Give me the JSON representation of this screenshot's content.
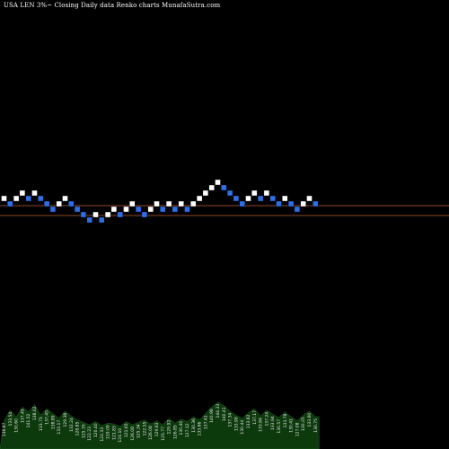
{
  "header": {
    "title": "USA LEN  3%~   Closing  Daily data  Renko  charts MunafaSutra.com"
  },
  "colors": {
    "background": "#000000",
    "up_brick": "#ffffff",
    "down_brick": "#2f6fe6",
    "ref_line": "#c0613a",
    "volume_area": "#0d3a0d"
  },
  "chart_data": {
    "type": "renko",
    "title": "USA LEN  3%~   Closing  Daily data  Renko  charts MunafaSutra.com",
    "xlabel": "",
    "ylabel": "",
    "grid": false,
    "legend": "none",
    "brick_percent": 3,
    "bricks": [
      {
        "dir": "up",
        "level": 0
      },
      {
        "dir": "down",
        "level": -1
      },
      {
        "dir": "up",
        "level": 0
      },
      {
        "dir": "up",
        "level": 1
      },
      {
        "dir": "down",
        "level": 0
      },
      {
        "dir": "up",
        "level": 1
      },
      {
        "dir": "down",
        "level": 0
      },
      {
        "dir": "down",
        "level": -1
      },
      {
        "dir": "down",
        "level": -2
      },
      {
        "dir": "up",
        "level": -1
      },
      {
        "dir": "up",
        "level": 0
      },
      {
        "dir": "down",
        "level": -1
      },
      {
        "dir": "down",
        "level": -2
      },
      {
        "dir": "down",
        "level": -3
      },
      {
        "dir": "down",
        "level": -4
      },
      {
        "dir": "up",
        "level": -3
      },
      {
        "dir": "down",
        "level": -4
      },
      {
        "dir": "up",
        "level": -3
      },
      {
        "dir": "up",
        "level": -2
      },
      {
        "dir": "down",
        "level": -3
      },
      {
        "dir": "up",
        "level": -2
      },
      {
        "dir": "up",
        "level": -1
      },
      {
        "dir": "down",
        "level": -2
      },
      {
        "dir": "down",
        "level": -3
      },
      {
        "dir": "up",
        "level": -2
      },
      {
        "dir": "up",
        "level": -1
      },
      {
        "dir": "down",
        "level": -2
      },
      {
        "dir": "up",
        "level": -1
      },
      {
        "dir": "down",
        "level": -2
      },
      {
        "dir": "up",
        "level": -1
      },
      {
        "dir": "down",
        "level": -2
      },
      {
        "dir": "up",
        "level": -1
      },
      {
        "dir": "up",
        "level": 0
      },
      {
        "dir": "up",
        "level": 1
      },
      {
        "dir": "up",
        "level": 2
      },
      {
        "dir": "up",
        "level": 3
      },
      {
        "dir": "down",
        "level": 2
      },
      {
        "dir": "down",
        "level": 1
      },
      {
        "dir": "down",
        "level": 0
      },
      {
        "dir": "down",
        "level": -1
      },
      {
        "dir": "up",
        "level": 0
      },
      {
        "dir": "up",
        "level": 1
      },
      {
        "dir": "down",
        "level": 0
      },
      {
        "dir": "up",
        "level": 1
      },
      {
        "dir": "down",
        "level": 0
      },
      {
        "dir": "down",
        "level": -1
      },
      {
        "dir": "up",
        "level": 0
      },
      {
        "dir": "down",
        "level": -1
      },
      {
        "dir": "down",
        "level": -2
      },
      {
        "dir": "up",
        "level": -1
      },
      {
        "dir": "up",
        "level": 0
      },
      {
        "dir": "down",
        "level": -1
      }
    ],
    "reference_lines": [
      "resistance",
      "support"
    ],
    "volume": [
      0.35,
      0.48,
      0.4,
      0.52,
      0.46,
      0.55,
      0.42,
      0.5,
      0.44,
      0.38,
      0.47,
      0.41,
      0.36,
      0.33,
      0.3,
      0.34,
      0.29,
      0.32,
      0.31,
      0.28,
      0.34,
      0.3,
      0.33,
      0.36,
      0.31,
      0.35,
      0.3,
      0.38,
      0.32,
      0.37,
      0.34,
      0.4,
      0.36,
      0.44,
      0.52,
      0.58,
      0.54,
      0.47,
      0.42,
      0.38,
      0.45,
      0.5,
      0.41,
      0.48,
      0.43,
      0.39,
      0.46,
      0.4,
      0.35,
      0.42,
      0.47,
      0.4
    ],
    "x_tick_labels": [
      "136.87",
      "133.54",
      "130.60",
      "137.45",
      "141.52",
      "138.02",
      "133.73",
      "137.45",
      "138.89",
      "133.17",
      "129.38",
      "132.24",
      "128.85",
      "125.35",
      "122.23",
      "120.40",
      "122.33",
      "119.09",
      "121.83",
      "124.10",
      "121.65",
      "126.08",
      "125.34",
      "122.55",
      "126.08",
      "129.63",
      "125.77",
      "129.92",
      "126.85",
      "130.40",
      "127.12",
      "130.36",
      "133.66",
      "137.42",
      "140.98",
      "144.33",
      "140.41",
      "137.34",
      "133.99",
      "130.44",
      "133.82",
      "137.17",
      "133.84",
      "137.24",
      "133.94",
      "130.57",
      "133.78",
      "130.41",
      "127.08",
      "130.25",
      "133.60",
      "130.75"
    ]
  }
}
